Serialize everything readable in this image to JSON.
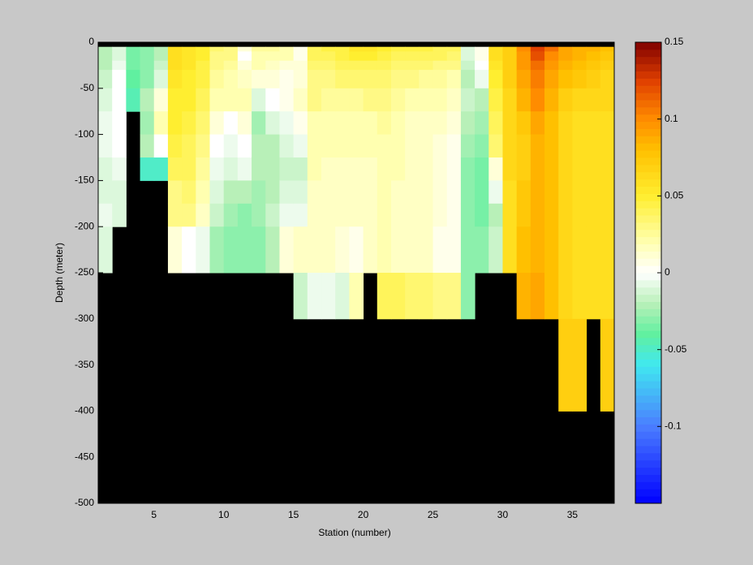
{
  "chart_data": {
    "type": "heatmap",
    "xlabel": "Station (number)",
    "ylabel": "Depth (meter)",
    "xlim": [
      1,
      38
    ],
    "ylim": [
      -500,
      0
    ],
    "xticks": [
      5,
      10,
      15,
      20,
      25,
      30,
      35
    ],
    "yticks": [
      0,
      -50,
      -100,
      -150,
      -200,
      -250,
      -300,
      -350,
      -400,
      -450,
      -500
    ],
    "clim": [
      -0.15,
      0.15
    ],
    "cticks": [
      0.15,
      0.1,
      0.05,
      0,
      -0.05,
      -0.1
    ],
    "missing_color": "#000000",
    "colorscale": [
      {
        "value": -0.15,
        "color": "#0000ff"
      },
      {
        "value": -0.1,
        "color": "#4a7dff"
      },
      {
        "value": -0.06,
        "color": "#40e8f0"
      },
      {
        "value": -0.04,
        "color": "#60f0a0"
      },
      {
        "value": -0.02,
        "color": "#b8f0b8"
      },
      {
        "value": 0,
        "color": "#ffffff"
      },
      {
        "value": 0.02,
        "color": "#ffffb0"
      },
      {
        "value": 0.05,
        "color": "#ffee30"
      },
      {
        "value": 0.08,
        "color": "#ffc000"
      },
      {
        "value": 0.1,
        "color": "#ff8c00"
      },
      {
        "value": 0.125,
        "color": "#e04000"
      },
      {
        "value": 0.15,
        "color": "#800000"
      }
    ],
    "x_edges": [
      1,
      2,
      3,
      4,
      5,
      6,
      7,
      8,
      9,
      10,
      11,
      12,
      13,
      14,
      15,
      16,
      17,
      18,
      19,
      20,
      21,
      22,
      23,
      24,
      25,
      26,
      27,
      28,
      29,
      30,
      31,
      32,
      33,
      34,
      35,
      36,
      37,
      38
    ],
    "y_edges": [
      -5,
      -10,
      -20,
      -30,
      -50,
      -75,
      -100,
      -125,
      -150,
      -175,
      -200,
      -250,
      -300,
      -400,
      -500
    ],
    "values": [
      [
        -0.02,
        -0.02,
        -0.02,
        -0.015,
        -0.01,
        -0.005,
        -0.005,
        -0.01,
        -0.01,
        -0.005,
        -0.01,
        null,
        null,
        null
      ],
      [
        -0.01,
        -0.01,
        -0.005,
        0,
        0,
        0,
        0,
        -0.005,
        -0.01,
        -0.01,
        null,
        null,
        null,
        null
      ],
      [
        -0.035,
        -0.035,
        -0.035,
        -0.04,
        -0.045,
        null,
        null,
        null,
        null,
        null,
        null,
        null,
        null,
        null
      ],
      [
        -0.03,
        -0.03,
        -0.03,
        -0.03,
        -0.02,
        -0.025,
        -0.02,
        -0.05,
        null,
        null,
        null,
        null,
        null,
        null
      ],
      [
        -0.02,
        -0.02,
        -0.015,
        -0.01,
        0.01,
        0.02,
        0,
        -0.05,
        null,
        null,
        null,
        null,
        null,
        null
      ],
      [
        0.06,
        0.06,
        0.06,
        0.055,
        0.05,
        0.05,
        0.045,
        0.04,
        0.03,
        0.03,
        0.01,
        null,
        null,
        null
      ],
      [
        0.055,
        0.055,
        0.055,
        0.05,
        0.05,
        0.045,
        0.04,
        0.04,
        0.035,
        0.03,
        0,
        null,
        null,
        null
      ],
      [
        0.05,
        0.05,
        0.045,
        0.045,
        0.04,
        0.035,
        0.03,
        0.025,
        0.02,
        0.015,
        -0.005,
        null,
        null,
        null
      ],
      [
        0.035,
        0.03,
        0.03,
        0.025,
        0.02,
        0.01,
        0,
        -0.005,
        -0.01,
        -0.015,
        -0.025,
        null,
        null,
        null
      ],
      [
        0.03,
        0.03,
        0.025,
        0.02,
        0.02,
        0,
        -0.005,
        -0.01,
        -0.02,
        -0.025,
        -0.03,
        null,
        null,
        null
      ],
      [
        0.01,
        0,
        0.01,
        0.015,
        0.02,
        0.01,
        0,
        -0.005,
        -0.02,
        -0.03,
        -0.03,
        null,
        null,
        null
      ],
      [
        0.025,
        0.02,
        0.02,
        0.01,
        -0.01,
        -0.025,
        -0.02,
        -0.02,
        -0.025,
        -0.025,
        -0.03,
        null,
        null,
        null
      ],
      [
        0.025,
        0.02,
        0.015,
        0.01,
        0,
        -0.01,
        -0.02,
        -0.02,
        -0.02,
        -0.015,
        -0.02,
        null,
        null,
        null
      ],
      [
        0.02,
        0.02,
        0.01,
        0.005,
        0.005,
        -0.005,
        -0.01,
        -0.015,
        -0.01,
        -0.005,
        0.01,
        null,
        null,
        null
      ],
      [
        0.005,
        0.005,
        0.01,
        0.01,
        0.015,
        0.005,
        -0.005,
        -0.015,
        -0.01,
        -0.005,
        0.015,
        -0.015,
        null,
        null
      ],
      [
        0.04,
        0.04,
        0.035,
        0.03,
        0.03,
        0.02,
        0.02,
        0.02,
        0.015,
        0.015,
        0.015,
        -0.005,
        null,
        null
      ],
      [
        0.045,
        0.04,
        0.035,
        0.03,
        0.025,
        0.02,
        0.02,
        0.015,
        0.015,
        0.015,
        0.015,
        -0.005,
        null,
        null
      ],
      [
        0.045,
        0.045,
        0.04,
        0.035,
        0.025,
        0.02,
        0.02,
        0.015,
        0.015,
        0.015,
        0.01,
        -0.01,
        null,
        null
      ],
      [
        0.055,
        0.05,
        0.04,
        0.035,
        0.025,
        0.02,
        0.02,
        0.015,
        0.015,
        0.015,
        0.005,
        0.02,
        null,
        null
      ],
      [
        0.055,
        0.05,
        0.04,
        0.035,
        0.03,
        0.02,
        0.02,
        0.015,
        0.015,
        0.015,
        0.015,
        null,
        null,
        null
      ],
      [
        0.05,
        0.045,
        0.04,
        0.035,
        0.03,
        0.025,
        0.02,
        0.02,
        0.02,
        0.02,
        0.02,
        0.04,
        null,
        null
      ],
      [
        0.045,
        0.04,
        0.035,
        0.03,
        0.025,
        0.02,
        0.02,
        0.02,
        0.015,
        0.015,
        0.015,
        0.04,
        null,
        null
      ],
      [
        0.045,
        0.04,
        0.035,
        0.03,
        0.02,
        0.015,
        0.015,
        0.015,
        0.015,
        0.015,
        0.015,
        0.035,
        null,
        null
      ],
      [
        0.045,
        0.04,
        0.035,
        0.025,
        0.02,
        0.015,
        0.015,
        0.015,
        0.015,
        0.015,
        0.015,
        0.035,
        null,
        null
      ],
      [
        0.04,
        0.04,
        0.03,
        0.025,
        0.02,
        0.015,
        0.01,
        0.01,
        0.01,
        0.01,
        0.005,
        0.03,
        null,
        null
      ],
      [
        0.04,
        0.035,
        0.03,
        0.02,
        0.015,
        0.01,
        0.005,
        0.005,
        0.005,
        0.005,
        0.005,
        0.03,
        null,
        null
      ],
      [
        -0.01,
        -0.01,
        -0.015,
        -0.02,
        -0.015,
        -0.02,
        -0.025,
        -0.03,
        -0.03,
        -0.03,
        -0.03,
        -0.03,
        null,
        null
      ],
      [
        0.005,
        0.005,
        0,
        -0.005,
        -0.02,
        -0.025,
        -0.03,
        -0.035,
        -0.035,
        -0.035,
        -0.03,
        null,
        null,
        null
      ],
      [
        0.06,
        0.06,
        0.055,
        0.05,
        0.045,
        0.04,
        0.035,
        0.01,
        -0.005,
        -0.02,
        -0.015,
        null,
        null,
        null
      ],
      [
        0.07,
        0.07,
        0.07,
        0.07,
        0.065,
        0.065,
        0.065,
        0.065,
        0.06,
        0.06,
        0.06,
        null,
        null,
        null
      ],
      [
        0.1,
        0.095,
        0.095,
        0.09,
        0.085,
        0.075,
        0.07,
        0.07,
        0.075,
        0.075,
        0.08,
        0.085,
        null,
        null
      ],
      [
        0.125,
        0.12,
        0.11,
        0.105,
        0.1,
        0.09,
        0.085,
        0.085,
        0.085,
        0.085,
        0.085,
        0.09,
        null,
        null
      ],
      [
        0.11,
        0.1,
        0.095,
        0.09,
        0.085,
        0.08,
        0.08,
        0.08,
        0.08,
        0.08,
        0.08,
        0.08,
        null,
        null
      ],
      [
        0.09,
        0.09,
        0.085,
        0.08,
        0.07,
        0.065,
        0.065,
        0.065,
        0.065,
        0.065,
        0.065,
        0.065,
        0.07,
        null
      ],
      [
        0.085,
        0.085,
        0.08,
        0.075,
        0.065,
        0.06,
        0.06,
        0.06,
        0.06,
        0.06,
        0.06,
        0.06,
        0.07,
        null
      ],
      [
        0.085,
        0.08,
        0.075,
        0.07,
        0.065,
        0.06,
        0.06,
        0.06,
        0.06,
        0.06,
        0.06,
        0.06,
        null,
        null
      ],
      [
        0.08,
        0.075,
        0.07,
        0.065,
        0.065,
        0.06,
        0.06,
        0.06,
        0.06,
        0.06,
        0.06,
        0.06,
        0.07,
        null
      ]
    ]
  }
}
